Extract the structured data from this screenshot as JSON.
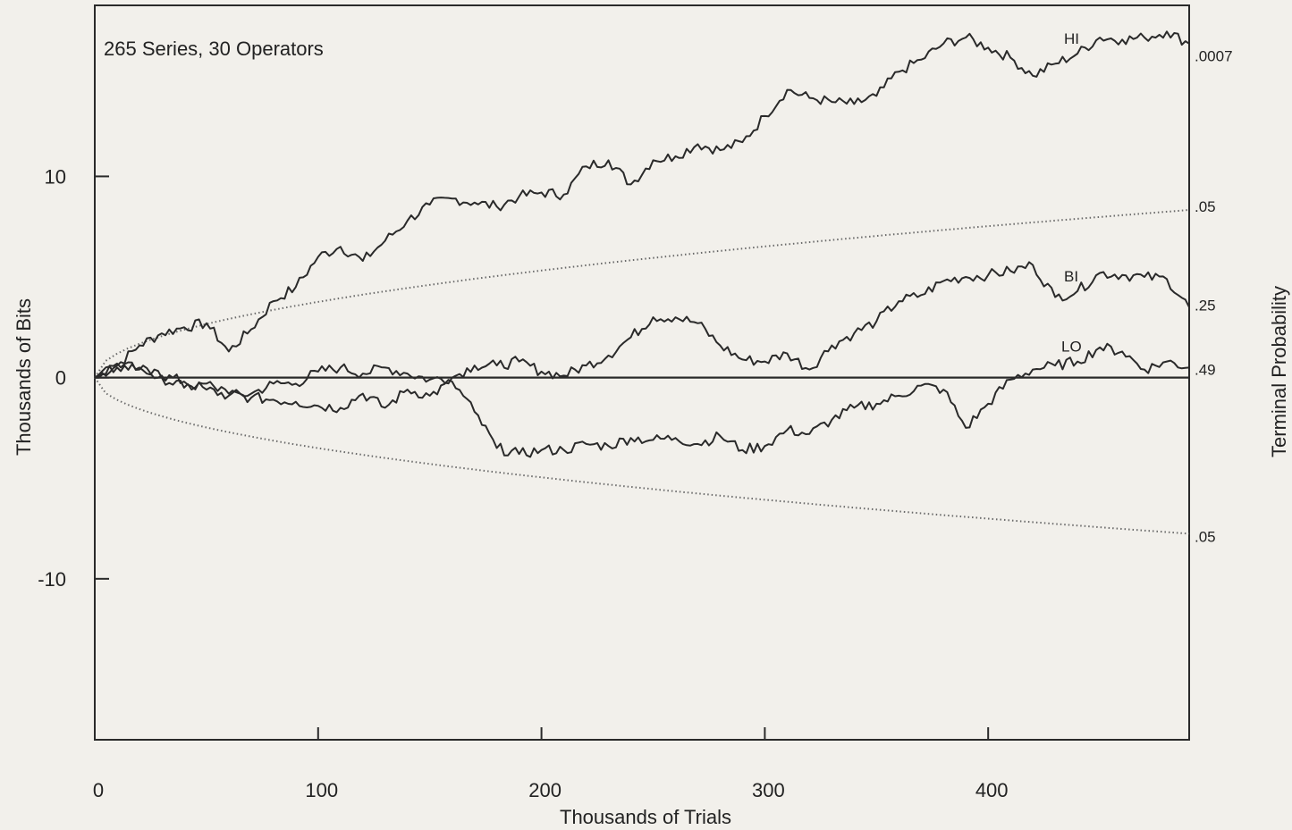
{
  "chart_data": {
    "type": "line",
    "annotation": "265 Series, 30 Operators",
    "xlabel": "Thousands of Trials",
    "ylabel": "Thousands of Bits",
    "y2label": "Terminal Probability",
    "xlim": [
      0,
      490
    ],
    "ylim": [
      -18,
      18.5
    ],
    "x_ticks": [
      {
        "value": 0,
        "label": "0"
      },
      {
        "value": 100,
        "label": "100"
      },
      {
        "value": 200,
        "label": "200"
      },
      {
        "value": 300,
        "label": "300"
      },
      {
        "value": 400,
        "label": "400"
      }
    ],
    "y_ticks": [
      {
        "value": 10,
        "label": "10"
      },
      {
        "value": 0,
        "label": "0"
      },
      {
        "value": -10,
        "label": "-10"
      }
    ],
    "envelope": {
      "k": 0.3764,
      "y_at_end_upper": 8.33,
      "y_at_end_lower": -7.76
    },
    "series": [
      {
        "name": "HI",
        "x": [
          0,
          10,
          20,
          30,
          40,
          50,
          60,
          70,
          80,
          90,
          100,
          110,
          120,
          130,
          140,
          150,
          160,
          170,
          180,
          190,
          200,
          210,
          220,
          230,
          240,
          250,
          260,
          270,
          280,
          290,
          300,
          310,
          320,
          330,
          340,
          350,
          360,
          370,
          380,
          390,
          400,
          410,
          420,
          430,
          440,
          450,
          460,
          470,
          480,
          490
        ],
        "y": [
          0,
          0.6,
          1.6,
          2.2,
          2.5,
          2.7,
          1.3,
          2.4,
          3.8,
          4.5,
          6.0,
          6.5,
          5.8,
          6.8,
          7.8,
          8.6,
          8.9,
          8.7,
          8.5,
          9.0,
          9.2,
          9.1,
          10.5,
          10.8,
          9.6,
          10.8,
          11.0,
          11.6,
          11.3,
          11.7,
          13.0,
          14.3,
          13.9,
          13.7,
          13.6,
          14.0,
          15.2,
          15.8,
          16.6,
          16.9,
          16.4,
          15.9,
          15.0,
          15.6,
          16.1,
          16.9,
          16.8,
          16.9,
          17.2,
          16.6
        ]
      },
      {
        "name": "BI",
        "x": [
          0,
          10,
          20,
          30,
          40,
          50,
          60,
          70,
          80,
          90,
          100,
          110,
          120,
          130,
          140,
          150,
          160,
          170,
          180,
          190,
          200,
          210,
          220,
          230,
          240,
          250,
          260,
          270,
          280,
          290,
          300,
          310,
          320,
          330,
          340,
          350,
          360,
          370,
          380,
          390,
          400,
          410,
          420,
          430,
          440,
          450,
          460,
          470,
          480,
          490
        ],
        "y": [
          0,
          0.7,
          0.4,
          0.1,
          -0.2,
          -0.6,
          -0.9,
          -0.8,
          -0.3,
          -0.3,
          0.3,
          0.5,
          0.2,
          0.5,
          0.2,
          -0.1,
          0.0,
          0.6,
          0.6,
          0.8,
          0.3,
          0.1,
          0.6,
          1.1,
          2.0,
          3.0,
          3.0,
          2.7,
          1.6,
          0.9,
          0.8,
          1.2,
          0.4,
          1.6,
          2.2,
          2.8,
          3.8,
          4.1,
          4.8,
          5.0,
          5.1,
          5.3,
          5.6,
          4.0,
          4.3,
          5.2,
          5.1,
          5.0,
          4.9,
          3.5
        ]
      },
      {
        "name": "LO",
        "x": [
          0,
          10,
          20,
          30,
          40,
          50,
          60,
          70,
          80,
          90,
          100,
          110,
          120,
          130,
          140,
          150,
          160,
          170,
          180,
          190,
          200,
          210,
          220,
          230,
          240,
          250,
          260,
          270,
          280,
          290,
          300,
          310,
          320,
          330,
          340,
          350,
          360,
          370,
          380,
          390,
          400,
          410,
          420,
          430,
          440,
          450,
          460,
          470,
          480,
          490
        ],
        "y": [
          0,
          0.5,
          0.5,
          0.0,
          -0.5,
          -0.3,
          -0.8,
          -1.0,
          -1.1,
          -1.2,
          -1.4,
          -1.5,
          -0.8,
          -1.5,
          -0.6,
          -0.9,
          -0.2,
          -1.7,
          -3.5,
          -3.8,
          -3.6,
          -3.6,
          -3.3,
          -3.4,
          -3.0,
          -3.1,
          -3.0,
          -3.3,
          -2.9,
          -3.6,
          -3.4,
          -2.6,
          -2.8,
          -2.1,
          -1.5,
          -1.3,
          -0.9,
          -0.4,
          -0.6,
          -2.5,
          -1.3,
          -0.1,
          0.4,
          0.6,
          0.8,
          1.5,
          1.3,
          0.4,
          0.8,
          0.5
        ]
      }
    ],
    "right_labels": [
      {
        "value": 16.0,
        "label": ".0007"
      },
      {
        "value": 8.5,
        "label": ".05"
      },
      {
        "value": 3.6,
        "label": ".25"
      },
      {
        "value": 0.4,
        "label": ".49"
      },
      {
        "value": -7.9,
        "label": ".05"
      }
    ],
    "line_labels": [
      {
        "series": "HI",
        "label": "HI"
      },
      {
        "series": "BI",
        "label": "BI"
      },
      {
        "series": "LO",
        "label": "LO"
      }
    ]
  }
}
